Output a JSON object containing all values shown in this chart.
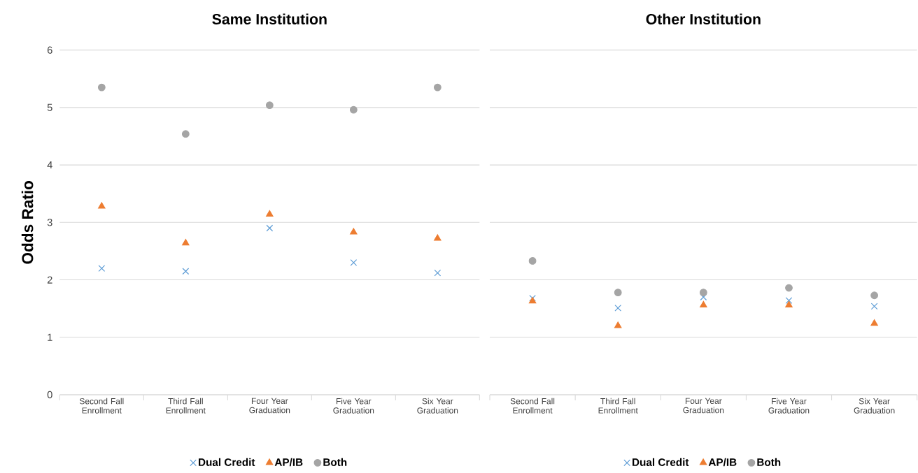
{
  "chart_data": [
    {
      "type": "scatter",
      "title": "Same Institution",
      "ylabel": "Odds Ratio",
      "categories": [
        "Second Fall Enrollment",
        "Third Fall Enrollment",
        "Four Year Graduation",
        "Five Year Graduation",
        "Six Year Graduation"
      ],
      "series": [
        {
          "name": "Dual Credit",
          "color": "#5b9bd5",
          "marker": "cross",
          "values": [
            2.2,
            2.15,
            2.9,
            2.3,
            2.12
          ]
        },
        {
          "name": "AP/IB",
          "color": "#ed7d31",
          "marker": "triangle",
          "values": [
            3.28,
            2.64,
            3.14,
            2.83,
            2.72
          ]
        },
        {
          "name": "Both",
          "color": "#a5a5a5",
          "marker": "circle",
          "values": [
            5.35,
            4.54,
            5.04,
            4.96,
            5.35
          ]
        }
      ],
      "ylim": [
        0,
        6
      ],
      "yticks": [
        0,
        1,
        2,
        3,
        4,
        5,
        6
      ],
      "grid": "y",
      "legend": "bottom"
    },
    {
      "type": "scatter",
      "title": "Other Institution",
      "categories": [
        "Second Fall Enrollment",
        "Third Fall Enrollment",
        "Four Year Graduation",
        "Five Year Graduation",
        "Six Year Graduation"
      ],
      "series": [
        {
          "name": "Dual Credit",
          "color": "#5b9bd5",
          "marker": "cross",
          "values": [
            1.68,
            1.51,
            1.7,
            1.64,
            1.54
          ]
        },
        {
          "name": "AP/IB",
          "color": "#ed7d31",
          "marker": "triangle",
          "values": [
            1.63,
            1.2,
            1.56,
            1.56,
            1.24
          ]
        },
        {
          "name": "Both",
          "color": "#a5a5a5",
          "marker": "circle",
          "values": [
            2.33,
            1.78,
            1.78,
            1.86,
            1.73
          ]
        }
      ],
      "ylim": [
        0,
        6
      ],
      "yticks": [
        0,
        1,
        2,
        3,
        4,
        5,
        6
      ],
      "grid": "y",
      "legend": "bottom",
      "tick_labels": "x"
    }
  ]
}
